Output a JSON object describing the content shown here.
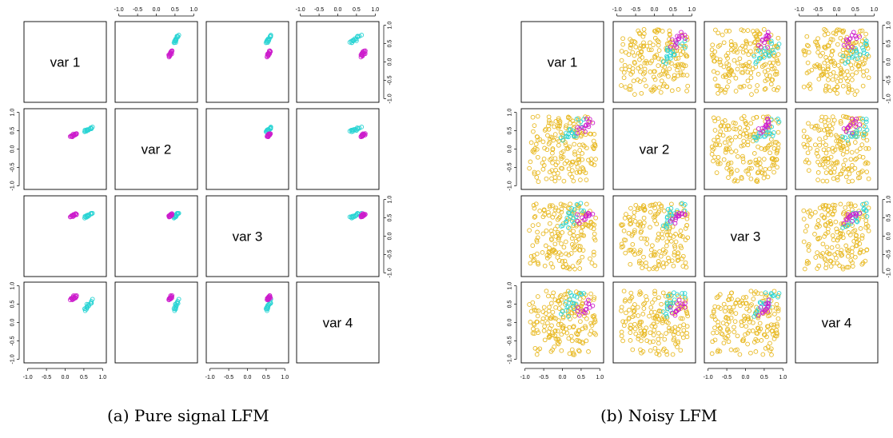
{
  "figure": {
    "captions": [
      "(a) Pure signal LFM",
      "(b) Noisy LFM"
    ]
  },
  "chart_data": [
    {
      "type": "scatter",
      "panel": "a",
      "variables": [
        "var 1",
        "var 2",
        "var 3",
        "var 4"
      ],
      "axis_ticks": [
        "-1.0",
        "-0.5",
        "0.0",
        "0.5",
        "1.0"
      ],
      "xlim": [
        -1.1,
        1.1
      ],
      "ylim": [
        -1.1,
        1.1
      ],
      "noise_points": 0,
      "colors": {
        "cyan": "#2ad4d4",
        "magenta": "#cc1ccc",
        "gold": "#e8b923"
      },
      "clusters": [
        {
          "name": "cyan",
          "color": "#2ad4d4",
          "center": [
            0.62,
            0.53,
            0.56,
            0.45
          ],
          "spread": [
            0.06,
            0.03,
            0.04,
            0.08
          ],
          "count": 16
        },
        {
          "name": "magenta",
          "color": "#cc1ccc",
          "center": [
            0.23,
            0.38,
            0.58,
            0.68
          ],
          "spread": [
            0.05,
            0.03,
            0.03,
            0.05
          ],
          "count": 16
        }
      ]
    },
    {
      "type": "scatter",
      "panel": "b",
      "variables": [
        "var 1",
        "var 2",
        "var 3",
        "var 4"
      ],
      "axis_ticks": [
        "-1.0",
        "-0.5",
        "0.0",
        "0.5",
        "1.0"
      ],
      "xlim": [
        -1.1,
        1.1
      ],
      "ylim": [
        -1.1,
        1.1
      ],
      "noise_points": 175,
      "noise_color": "#e8b923",
      "colors": {
        "cyan": "#2ad4d4",
        "magenta": "#cc1ccc",
        "gold": "#e8b923"
      },
      "clusters": [
        {
          "name": "cyan",
          "color": "#2ad4d4",
          "center": [
            0.3,
            0.45,
            0.58,
            0.55
          ],
          "spread": [
            0.22,
            0.2,
            0.22,
            0.22
          ],
          "count": 20
        },
        {
          "name": "magenta",
          "color": "#cc1ccc",
          "center": [
            0.55,
            0.55,
            0.5,
            0.35
          ],
          "spread": [
            0.14,
            0.12,
            0.12,
            0.15
          ],
          "count": 14
        }
      ]
    }
  ]
}
